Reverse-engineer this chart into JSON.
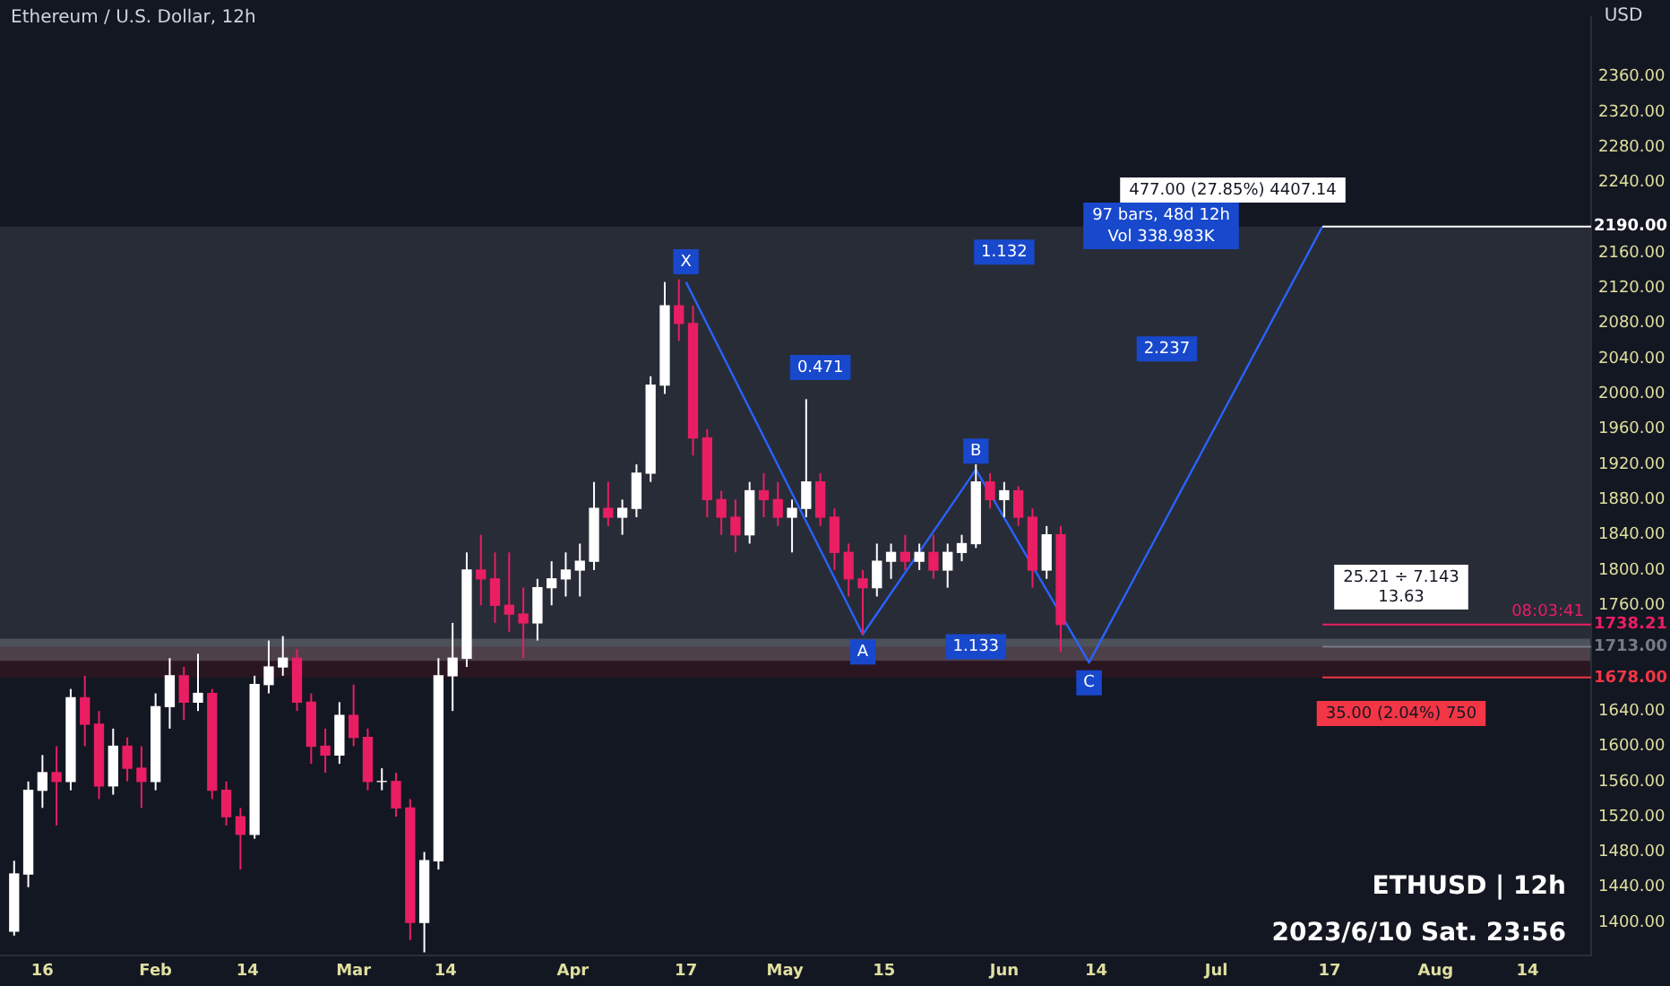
{
  "chart_data": {
    "type": "candlestick",
    "title": "Ethereum / U.S. Dollar, 12h",
    "ylabel": "USD",
    "x": [
      "2023-01-12",
      "2023-01-14",
      "2023-01-16",
      "2023-01-18",
      "2023-01-20",
      "2023-01-22",
      "2023-01-24",
      "2023-01-26",
      "2023-01-28",
      "2023-01-30",
      "2023-02-01",
      "2023-02-03",
      "2023-02-05",
      "2023-02-07",
      "2023-02-09",
      "2023-02-11",
      "2023-02-13",
      "2023-02-15",
      "2023-02-17",
      "2023-02-19",
      "2023-02-21",
      "2023-02-23",
      "2023-02-25",
      "2023-02-27",
      "2023-03-01",
      "2023-03-03",
      "2023-03-05",
      "2023-03-07",
      "2023-03-09",
      "2023-03-11",
      "2023-03-13",
      "2023-03-15",
      "2023-03-17",
      "2023-03-19",
      "2023-03-21",
      "2023-03-23",
      "2023-03-25",
      "2023-03-27",
      "2023-03-29",
      "2023-03-31",
      "2023-04-02",
      "2023-04-04",
      "2023-04-06",
      "2023-04-08",
      "2023-04-10",
      "2023-04-12",
      "2023-04-14",
      "2023-04-16",
      "2023-04-18",
      "2023-04-20",
      "2023-04-22",
      "2023-04-24",
      "2023-04-26",
      "2023-04-28",
      "2023-04-30",
      "2023-05-02",
      "2023-05-04",
      "2023-05-06",
      "2023-05-08",
      "2023-05-10",
      "2023-05-12",
      "2023-05-14",
      "2023-05-16",
      "2023-05-18",
      "2023-05-20",
      "2023-05-22",
      "2023-05-24",
      "2023-05-26",
      "2023-05-28",
      "2023-05-30",
      "2023-06-01",
      "2023-06-03",
      "2023-06-05",
      "2023-06-07",
      "2023-06-09"
    ],
    "ohlc": [
      [
        1390,
        1470,
        1385,
        1455
      ],
      [
        1455,
        1560,
        1440,
        1550
      ],
      [
        1550,
        1590,
        1530,
        1570
      ],
      [
        1570,
        1600,
        1510,
        1560
      ],
      [
        1560,
        1665,
        1550,
        1655
      ],
      [
        1655,
        1680,
        1600,
        1625
      ],
      [
        1625,
        1640,
        1540,
        1555
      ],
      [
        1555,
        1620,
        1545,
        1600
      ],
      [
        1600,
        1610,
        1560,
        1575
      ],
      [
        1575,
        1600,
        1530,
        1560
      ],
      [
        1560,
        1660,
        1550,
        1645
      ],
      [
        1645,
        1700,
        1620,
        1680
      ],
      [
        1680,
        1690,
        1630,
        1650
      ],
      [
        1650,
        1705,
        1640,
        1660
      ],
      [
        1660,
        1665,
        1540,
        1550
      ],
      [
        1550,
        1560,
        1510,
        1520
      ],
      [
        1520,
        1530,
        1460,
        1500
      ],
      [
        1500,
        1680,
        1495,
        1670
      ],
      [
        1670,
        1720,
        1660,
        1690
      ],
      [
        1690,
        1725,
        1680,
        1700
      ],
      [
        1700,
        1710,
        1640,
        1650
      ],
      [
        1650,
        1660,
        1580,
        1600
      ],
      [
        1600,
        1620,
        1570,
        1590
      ],
      [
        1590,
        1650,
        1580,
        1635
      ],
      [
        1635,
        1670,
        1600,
        1610
      ],
      [
        1610,
        1620,
        1550,
        1560
      ],
      [
        1560,
        1575,
        1550,
        1560
      ],
      [
        1560,
        1570,
        1520,
        1530
      ],
      [
        1530,
        1540,
        1380,
        1400
      ],
      [
        1400,
        1480,
        1366,
        1470
      ],
      [
        1470,
        1700,
        1460,
        1680
      ],
      [
        1680,
        1740,
        1640,
        1700
      ],
      [
        1700,
        1820,
        1690,
        1800
      ],
      [
        1800,
        1840,
        1760,
        1790
      ],
      [
        1790,
        1820,
        1740,
        1760
      ],
      [
        1760,
        1820,
        1730,
        1750
      ],
      [
        1750,
        1780,
        1700,
        1740
      ],
      [
        1740,
        1790,
        1720,
        1780
      ],
      [
        1780,
        1810,
        1760,
        1790
      ],
      [
        1790,
        1820,
        1770,
        1800
      ],
      [
        1800,
        1830,
        1770,
        1810
      ],
      [
        1810,
        1900,
        1800,
        1870
      ],
      [
        1870,
        1900,
        1850,
        1860
      ],
      [
        1860,
        1880,
        1840,
        1870
      ],
      [
        1870,
        1920,
        1860,
        1910
      ],
      [
        1910,
        2020,
        1900,
        2010
      ],
      [
        2010,
        2127,
        2000,
        2100
      ],
      [
        2100,
        2130,
        2060,
        2080
      ],
      [
        2080,
        2100,
        1930,
        1950
      ],
      [
        1950,
        1960,
        1860,
        1880
      ],
      [
        1880,
        1890,
        1840,
        1860
      ],
      [
        1860,
        1880,
        1820,
        1840
      ],
      [
        1840,
        1900,
        1830,
        1890
      ],
      [
        1890,
        1910,
        1860,
        1880
      ],
      [
        1880,
        1900,
        1850,
        1860
      ],
      [
        1860,
        1880,
        1820,
        1870
      ],
      [
        1870,
        1994,
        1860,
        1900
      ],
      [
        1900,
        1910,
        1850,
        1860
      ],
      [
        1860,
        1870,
        1800,
        1820
      ],
      [
        1820,
        1830,
        1770,
        1790
      ],
      [
        1790,
        1800,
        1727,
        1780
      ],
      [
        1780,
        1830,
        1770,
        1810
      ],
      [
        1810,
        1830,
        1790,
        1820
      ],
      [
        1820,
        1840,
        1800,
        1810
      ],
      [
        1810,
        1830,
        1800,
        1820
      ],
      [
        1820,
        1840,
        1790,
        1800
      ],
      [
        1800,
        1830,
        1780,
        1820
      ],
      [
        1820,
        1840,
        1810,
        1830
      ],
      [
        1830,
        1920,
        1825,
        1900
      ],
      [
        1900,
        1910,
        1870,
        1880
      ],
      [
        1880,
        1900,
        1860,
        1890
      ],
      [
        1890,
        1895,
        1850,
        1860
      ],
      [
        1860,
        1870,
        1780,
        1800
      ],
      [
        1800,
        1850,
        1790,
        1840
      ],
      [
        1840,
        1850,
        1707,
        1738.21
      ]
    ],
    "colors": [
      "#ffffff",
      "#ffffff",
      "#ffffff",
      "#e91e63",
      "#ffffff",
      "#e91e63",
      "#e91e63",
      "#ffffff",
      "#e91e63",
      "#e91e63",
      "#ffffff",
      "#ffffff",
      "#e91e63",
      "#ffffff",
      "#e91e63",
      "#e91e63",
      "#e91e63",
      "#ffffff",
      "#ffffff",
      "#ffffff",
      "#e91e63",
      "#e91e63",
      "#e91e63",
      "#ffffff",
      "#e91e63",
      "#e91e63",
      "#ffffff",
      "#e91e63",
      "#e91e63",
      "#ffffff",
      "#ffffff",
      "#ffffff",
      "#ffffff",
      "#e91e63",
      "#e91e63",
      "#e91e63",
      "#e91e63",
      "#ffffff",
      "#ffffff",
      "#ffffff",
      "#ffffff",
      "#ffffff",
      "#e91e63",
      "#ffffff",
      "#ffffff",
      "#ffffff",
      "#ffffff",
      "#e91e63",
      "#e91e63",
      "#e91e63",
      "#e91e63",
      "#e91e63",
      "#ffffff",
      "#e91e63",
      "#e91e63",
      "#ffffff",
      "#ffffff",
      "#e91e63",
      "#e91e63",
      "#e91e63",
      "#e91e63",
      "#ffffff",
      "#ffffff",
      "#e91e63",
      "#ffffff",
      "#e91e63",
      "#ffffff",
      "#ffffff",
      "#ffffff",
      "#e91e63",
      "#ffffff",
      "#e91e63",
      "#e91e63",
      "#ffffff",
      "#e91e63"
    ],
    "series": [
      {
        "type": "line",
        "color": "#2962ff",
        "x": [
          "2023-04-17",
          "2023-05-12",
          "2023-05-28",
          "2023-06-13",
          "2023-07-16"
        ],
        "values": [
          2127,
          1727,
          1914,
          1695,
          2190
        ]
      }
    ],
    "xlim": [
      "2023-01-10",
      "2023-08-23"
    ],
    "xticks": [
      {
        "value": "2023-01-16",
        "label": "16"
      },
      {
        "value": "2023-02-01",
        "label": "Feb"
      },
      {
        "value": "2023-02-14",
        "label": "14"
      },
      {
        "value": "2023-03-01",
        "label": "Mar"
      },
      {
        "value": "2023-03-14",
        "label": "14"
      },
      {
        "value": "2023-04-01",
        "label": "Apr"
      },
      {
        "value": "2023-04-17",
        "label": "17"
      },
      {
        "value": "2023-05-01",
        "label": "May"
      },
      {
        "value": "2023-05-15",
        "label": "15"
      },
      {
        "value": "2023-06-01",
        "label": "Jun"
      },
      {
        "value": "2023-06-14",
        "label": "14"
      },
      {
        "value": "2023-07-01",
        "label": "Jul"
      },
      {
        "value": "2023-07-17",
        "label": "17"
      },
      {
        "value": "2023-08-01",
        "label": "Aug"
      },
      {
        "value": "2023-08-14",
        "label": "14"
      }
    ],
    "ylim": [
      1362,
      2428
    ],
    "yticks": [
      {
        "value": 1400,
        "label": "1400.00"
      },
      {
        "value": 1440,
        "label": "1440.00"
      },
      {
        "value": 1480,
        "label": "1480.00"
      },
      {
        "value": 1520,
        "label": "1520.00"
      },
      {
        "value": 1560,
        "label": "1560.00"
      },
      {
        "value": 1600,
        "label": "1600.00"
      },
      {
        "value": 1640,
        "label": "1640.00"
      },
      {
        "value": 1760,
        "label": "1760.00"
      },
      {
        "value": 1800,
        "label": "1800.00"
      },
      {
        "value": 1840,
        "label": "1840.00"
      },
      {
        "value": 1880,
        "label": "1880.00"
      },
      {
        "value": 1920,
        "label": "1920.00"
      },
      {
        "value": 1960,
        "label": "1960.00"
      },
      {
        "value": 2000,
        "label": "2000.00"
      },
      {
        "value": 2040,
        "label": "2040.00"
      },
      {
        "value": 2080,
        "label": "2080.00"
      },
      {
        "value": 2120,
        "label": "2120.00"
      },
      {
        "value": 2160,
        "label": "2160.00"
      },
      {
        "value": 2240,
        "label": "2240.00"
      },
      {
        "value": 2280,
        "label": "2280.00"
      },
      {
        "value": 2320,
        "label": "2320.00"
      },
      {
        "value": 2360,
        "label": "2360.00"
      }
    ],
    "bands": [
      {
        "axis": "y",
        "from": 1713,
        "to": 2190,
        "color": "#787b86"
      },
      {
        "axis": "y",
        "from": 1678,
        "to": 1713,
        "color": "#801922"
      },
      {
        "axis": "y",
        "from": 1697,
        "to": 1722,
        "color": "#d1d4dc"
      }
    ],
    "ref_lines": [
      {
        "axis": "y",
        "value": 2190,
        "label": "2190.00",
        "color": "#ffffff"
      },
      {
        "axis": "y",
        "value": 1738.21,
        "label": "1738.21",
        "color": "#e91e63"
      },
      {
        "axis": "y",
        "value": 1713,
        "label": "1713.00",
        "color": "#787b86"
      },
      {
        "axis": "y",
        "value": 1678,
        "label": "1678.00",
        "color": "#f23645"
      }
    ],
    "annotations": [
      "08:03:41",
      "ETHUSD | 12h",
      "2023/6/10 Sat. 23:56",
      "97 bars, 48d 12h",
      "Vol 338.983K",
      "477.00 (27.85%) 4407.14",
      "25.21 ÷ 7.143",
      "13.63",
      "35.00 (2.04%) 750",
      {
        "text": "X",
        "x": "2023-04-17",
        "y": 2150
      },
      {
        "text": "A",
        "x": "2023-05-12",
        "y": 1707
      },
      {
        "text": "B",
        "x": "2023-05-28",
        "y": 1935
      },
      {
        "text": "C",
        "x": "2023-06-13",
        "y": 1672
      },
      {
        "text": "0.471",
        "x": "2023-05-06",
        "y": 2030
      },
      {
        "text": "1.132",
        "x": "2023-06-01",
        "y": 2161
      },
      {
        "text": "1.133",
        "x": "2023-05-28",
        "y": 1713
      },
      {
        "text": "2.237",
        "x": "2023-06-24",
        "y": 2051
      }
    ]
  }
}
